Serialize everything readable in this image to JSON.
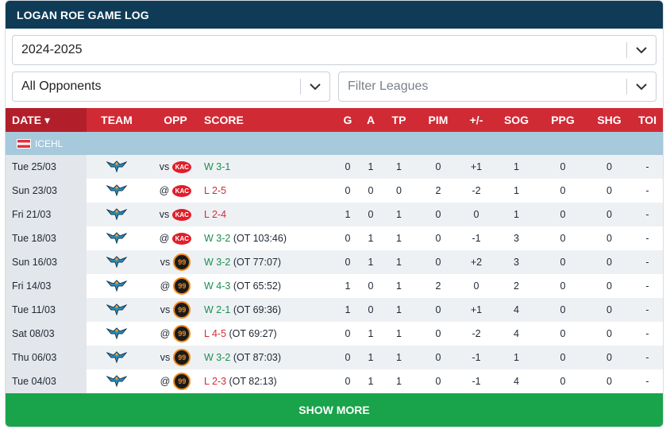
{
  "title": "LOGAN ROE GAME LOG",
  "filters": {
    "season": "2024-2025",
    "opponents": "All Opponents",
    "leagues_placeholder": "Filter Leagues"
  },
  "columns": {
    "date": "DATE ▾",
    "team": "TEAM",
    "opp": "OPP",
    "score": "SCORE",
    "g": "G",
    "a": "A",
    "tp": "TP",
    "pim": "PIM",
    "pm": "+/-",
    "sog": "SOG",
    "ppg": "PPG",
    "shg": "SHG",
    "toi": "TOI"
  },
  "league": "ICEHL",
  "games": [
    {
      "date": "Tue 25/03",
      "loc": "vs",
      "opp_logo": "kac",
      "opp_text": "KAC",
      "res": "W",
      "result": "W 3-1",
      "ot": "",
      "g": "0",
      "a": "1",
      "tp": "1",
      "pim": "0",
      "pm": "+1",
      "sog": "1",
      "ppg": "0",
      "shg": "0",
      "toi": "-"
    },
    {
      "date": "Sun 23/03",
      "loc": "@",
      "opp_logo": "kac",
      "opp_text": "KAC",
      "res": "L",
      "result": "L 2-5",
      "ot": "",
      "g": "0",
      "a": "0",
      "tp": "0",
      "pim": "2",
      "pm": "-2",
      "sog": "1",
      "ppg": "0",
      "shg": "0",
      "toi": "-"
    },
    {
      "date": "Fri 21/03",
      "loc": "vs",
      "opp_logo": "kac",
      "opp_text": "KAC",
      "res": "L",
      "result": "L 2-4",
      "ot": "",
      "g": "1",
      "a": "0",
      "tp": "1",
      "pim": "0",
      "pm": "0",
      "sog": "1",
      "ppg": "0",
      "shg": "0",
      "toi": "-"
    },
    {
      "date": "Tue 18/03",
      "loc": "@",
      "opp_logo": "kac",
      "opp_text": "KAC",
      "res": "W",
      "result": "W 3-2",
      "ot": " (OT 103:46)",
      "g": "0",
      "a": "1",
      "tp": "1",
      "pim": "0",
      "pm": "-1",
      "sog": "3",
      "ppg": "0",
      "shg": "0",
      "toi": "-"
    },
    {
      "date": "Sun 16/03",
      "loc": "vs",
      "opp_logo": "99",
      "opp_text": "99",
      "res": "W",
      "result": "W 3-2",
      "ot": " (OT 77:07)",
      "g": "0",
      "a": "1",
      "tp": "1",
      "pim": "0",
      "pm": "+2",
      "sog": "3",
      "ppg": "0",
      "shg": "0",
      "toi": "-"
    },
    {
      "date": "Fri 14/03",
      "loc": "@",
      "opp_logo": "99",
      "opp_text": "99",
      "res": "W",
      "result": "W 4-3",
      "ot": " (OT 65:52)",
      "g": "1",
      "a": "0",
      "tp": "1",
      "pim": "2",
      "pm": "0",
      "sog": "2",
      "ppg": "0",
      "shg": "0",
      "toi": "-"
    },
    {
      "date": "Tue 11/03",
      "loc": "vs",
      "opp_logo": "99",
      "opp_text": "99",
      "res": "W",
      "result": "W 2-1",
      "ot": " (OT 69:36)",
      "g": "1",
      "a": "0",
      "tp": "1",
      "pim": "0",
      "pm": "+1",
      "sog": "4",
      "ppg": "0",
      "shg": "0",
      "toi": "-"
    },
    {
      "date": "Sat 08/03",
      "loc": "@",
      "opp_logo": "99",
      "opp_text": "99",
      "res": "L",
      "result": "L 4-5",
      "ot": " (OT 69:27)",
      "g": "0",
      "a": "1",
      "tp": "1",
      "pim": "0",
      "pm": "-2",
      "sog": "4",
      "ppg": "0",
      "shg": "0",
      "toi": "-"
    },
    {
      "date": "Thu 06/03",
      "loc": "vs",
      "opp_logo": "99",
      "opp_text": "99",
      "res": "W",
      "result": "W 3-2",
      "ot": " (OT 87:03)",
      "g": "0",
      "a": "1",
      "tp": "1",
      "pim": "0",
      "pm": "-1",
      "sog": "1",
      "ppg": "0",
      "shg": "0",
      "toi": "-"
    },
    {
      "date": "Tue 04/03",
      "loc": "@",
      "opp_logo": "99",
      "opp_text": "99",
      "res": "L",
      "result": "L 2-3",
      "ot": " (OT 82:13)",
      "g": "0",
      "a": "1",
      "tp": "1",
      "pim": "0",
      "pm": "-1",
      "sog": "4",
      "ppg": "0",
      "shg": "0",
      "toi": "-"
    }
  ],
  "show_more": "SHOW MORE",
  "colors": {
    "header": "#0f3b57",
    "table_head": "#d02a35",
    "win": "#1b8f4c",
    "loss": "#d42a34",
    "show_more": "#19a34a"
  },
  "icons": {
    "team": "eagle-logo-icon",
    "dropdown": "chevron-down-icon"
  }
}
